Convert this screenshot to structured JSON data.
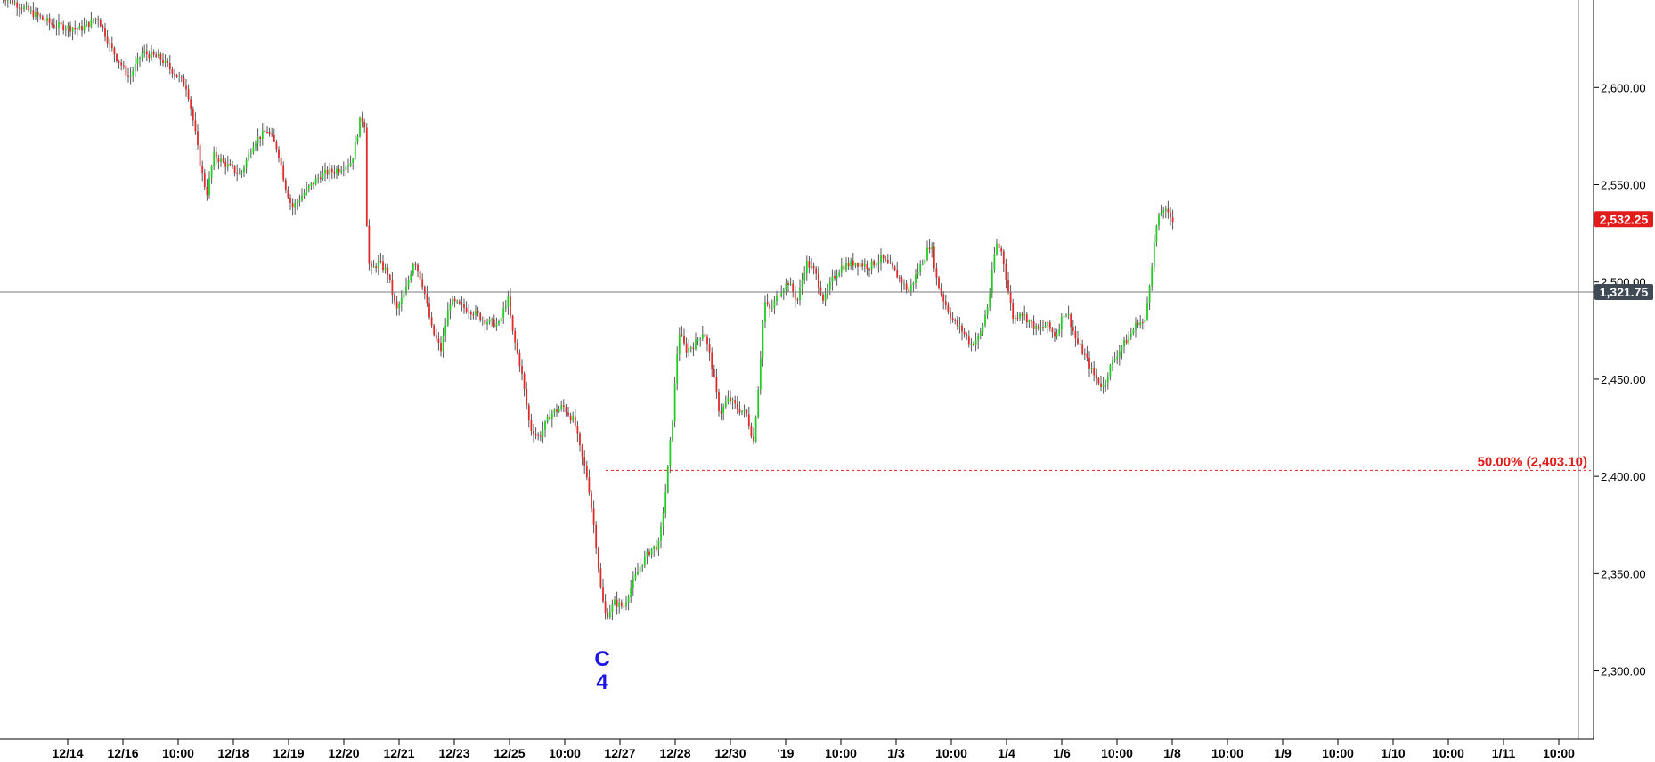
{
  "chart_data": {
    "type": "line",
    "ylim": [
      2265,
      2645
    ],
    "y_ticks": [
      "2,300.00",
      "2,350.00",
      "2,400.00",
      "2,450.00",
      "2,500.00",
      "2,550.00",
      "2,600.00"
    ],
    "x_ticks": [
      "12/14",
      "12/16",
      "10:00",
      "12/18",
      "12/19",
      "12/20",
      "12/21",
      "12/23",
      "12/25",
      "10:00",
      "12/27",
      "12/28",
      "12/30",
      "'19",
      "10:00",
      "1/3",
      "10:00",
      "1/4",
      "1/6",
      "10:00",
      "1/8",
      "10:00",
      "1/9",
      "10:00",
      "1/10",
      "10:00",
      "1/11",
      "10:00"
    ],
    "price_series": [
      [
        0,
        2648
      ],
      [
        30,
        2640
      ],
      [
        60,
        2632
      ],
      [
        90,
        2630
      ],
      [
        110,
        2636
      ],
      [
        125,
        2620
      ],
      [
        145,
        2605
      ],
      [
        160,
        2618
      ],
      [
        180,
        2615
      ],
      [
        195,
        2608
      ],
      [
        210,
        2600
      ],
      [
        218,
        2580
      ],
      [
        225,
        2560
      ],
      [
        232,
        2545
      ],
      [
        240,
        2565
      ],
      [
        255,
        2560
      ],
      [
        270,
        2555
      ],
      [
        285,
        2572
      ],
      [
        300,
        2578
      ],
      [
        312,
        2568
      ],
      [
        320,
        2550
      ],
      [
        328,
        2538
      ],
      [
        340,
        2545
      ],
      [
        360,
        2555
      ],
      [
        380,
        2558
      ],
      [
        395,
        2562
      ],
      [
        405,
        2585
      ],
      [
        410,
        2580
      ],
      [
        412,
        2525
      ],
      [
        415,
        2505
      ],
      [
        425,
        2510
      ],
      [
        435,
        2505
      ],
      [
        445,
        2485
      ],
      [
        455,
        2495
      ],
      [
        465,
        2512
      ],
      [
        475,
        2498
      ],
      [
        485,
        2475
      ],
      [
        495,
        2465
      ],
      [
        505,
        2490
      ],
      [
        515,
        2488
      ],
      [
        530,
        2485
      ],
      [
        545,
        2480
      ],
      [
        560,
        2478
      ],
      [
        570,
        2492
      ],
      [
        575,
        2475
      ],
      [
        585,
        2455
      ],
      [
        595,
        2425
      ],
      [
        605,
        2420
      ],
      [
        618,
        2432
      ],
      [
        632,
        2436
      ],
      [
        645,
        2428
      ],
      [
        652,
        2412
      ],
      [
        660,
        2398
      ],
      [
        668,
        2370
      ],
      [
        675,
        2340
      ],
      [
        680,
        2328
      ],
      [
        690,
        2335
      ],
      [
        700,
        2333
      ],
      [
        710,
        2345
      ],
      [
        720,
        2355
      ],
      [
        730,
        2362
      ],
      [
        740,
        2365
      ],
      [
        748,
        2395
      ],
      [
        755,
        2430
      ],
      [
        762,
        2475
      ],
      [
        770,
        2465
      ],
      [
        780,
        2468
      ],
      [
        790,
        2475
      ],
      [
        798,
        2460
      ],
      [
        808,
        2432
      ],
      [
        818,
        2440
      ],
      [
        828,
        2435
      ],
      [
        838,
        2432
      ],
      [
        846,
        2418
      ],
      [
        852,
        2450
      ],
      [
        858,
        2490
      ],
      [
        865,
        2485
      ],
      [
        875,
        2495
      ],
      [
        885,
        2500
      ],
      [
        895,
        2490
      ],
      [
        905,
        2510
      ],
      [
        915,
        2505
      ],
      [
        925,
        2490
      ],
      [
        935,
        2502
      ],
      [
        945,
        2508
      ],
      [
        960,
        2510
      ],
      [
        975,
        2508
      ],
      [
        990,
        2512
      ],
      [
        1005,
        2505
      ],
      [
        1020,
        2495
      ],
      [
        1035,
        2510
      ],
      [
        1045,
        2520
      ],
      [
        1052,
        2500
      ],
      [
        1060,
        2490
      ],
      [
        1070,
        2480
      ],
      [
        1080,
        2475
      ],
      [
        1090,
        2468
      ],
      [
        1100,
        2472
      ],
      [
        1110,
        2490
      ],
      [
        1118,
        2520
      ],
      [
        1125,
        2515
      ],
      [
        1132,
        2495
      ],
      [
        1138,
        2480
      ],
      [
        1145,
        2485
      ],
      [
        1155,
        2480
      ],
      [
        1165,
        2475
      ],
      [
        1175,
        2478
      ],
      [
        1185,
        2472
      ],
      [
        1195,
        2485
      ],
      [
        1200,
        2482
      ],
      [
        1208,
        2470
      ],
      [
        1218,
        2462
      ],
      [
        1228,
        2452
      ],
      [
        1238,
        2446
      ],
      [
        1248,
        2458
      ],
      [
        1258,
        2466
      ],
      [
        1268,
        2472
      ],
      [
        1278,
        2480
      ],
      [
        1285,
        2478
      ],
      [
        1292,
        2505
      ],
      [
        1298,
        2528
      ],
      [
        1305,
        2538
      ],
      [
        1312,
        2534
      ],
      [
        1318,
        2532
      ]
    ],
    "current_price": {
      "value": 2532.25,
      "label": "2,532.25"
    },
    "crosshair": {
      "label": "1,321.75"
    },
    "fib_level": {
      "value": 2403.1,
      "label": "50.00% (2,403.10)"
    },
    "wave_label": {
      "lines": [
        "C",
        "4"
      ],
      "at_value": 2320
    },
    "colors": {
      "up": "#22cc22",
      "down": "#e02a2a",
      "wick": "#555555",
      "fib": "#e21b1b",
      "wave": "#1a14e6",
      "badge_price": "#e21b1b",
      "badge_crosshair": "#3f4a55"
    }
  }
}
